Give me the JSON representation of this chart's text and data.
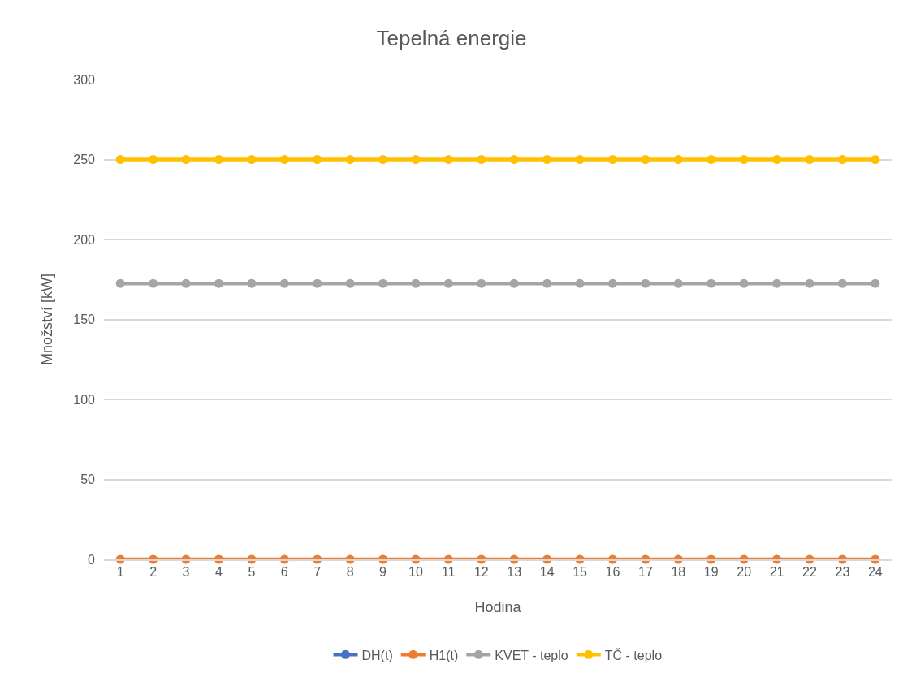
{
  "chart_data": {
    "type": "line",
    "title": "Tepelná energie",
    "xlabel": "Hodina",
    "ylabel": "Množství [kW]",
    "x": [
      1,
      2,
      3,
      4,
      5,
      6,
      7,
      8,
      9,
      10,
      11,
      12,
      13,
      14,
      15,
      16,
      17,
      18,
      19,
      20,
      21,
      22,
      23,
      24
    ],
    "xlim": [
      0.5,
      24.5
    ],
    "xticks": [
      1,
      2,
      3,
      4,
      5,
      6,
      7,
      8,
      9,
      10,
      11,
      12,
      13,
      14,
      15,
      16,
      17,
      18,
      19,
      20,
      21,
      22,
      23,
      24
    ],
    "ylim": [
      0,
      300
    ],
    "yticks": [
      0,
      50,
      100,
      150,
      200,
      250,
      300
    ],
    "grid": "y",
    "legend": "bottom",
    "marker": "circle",
    "line_style": "solid",
    "series": [
      {
        "name": "DH(t)",
        "color": "#4472c4",
        "values": [
          null,
          null,
          null,
          null,
          null,
          null,
          null,
          null,
          null,
          null,
          null,
          null,
          null,
          null,
          null,
          null,
          null,
          null,
          null,
          null,
          null,
          null,
          null,
          null
        ]
      },
      {
        "name": "H1(t)",
        "color": "#ed7d31",
        "values": [
          0,
          0,
          0,
          0,
          0,
          0,
          0,
          0,
          0,
          0,
          0,
          0,
          0,
          0,
          0,
          0,
          0,
          0,
          0,
          0,
          0,
          0,
          0,
          0
        ]
      },
      {
        "name": "KVET - teplo",
        "color": "#a5a5a5",
        "values": [
          172.5,
          172.5,
          172.5,
          172.5,
          172.5,
          172.5,
          172.5,
          172.5,
          172.5,
          172.5,
          172.5,
          172.5,
          172.5,
          172.5,
          172.5,
          172.5,
          172.5,
          172.5,
          172.5,
          172.5,
          172.5,
          172.5,
          172.5,
          172.5
        ]
      },
      {
        "name": "TČ - teplo",
        "color": "#ffc000",
        "values": [
          250,
          250,
          250,
          250,
          250,
          250,
          250,
          250,
          250,
          250,
          250,
          250,
          250,
          250,
          250,
          250,
          250,
          250,
          250,
          250,
          250,
          250,
          250,
          250
        ]
      }
    ]
  }
}
